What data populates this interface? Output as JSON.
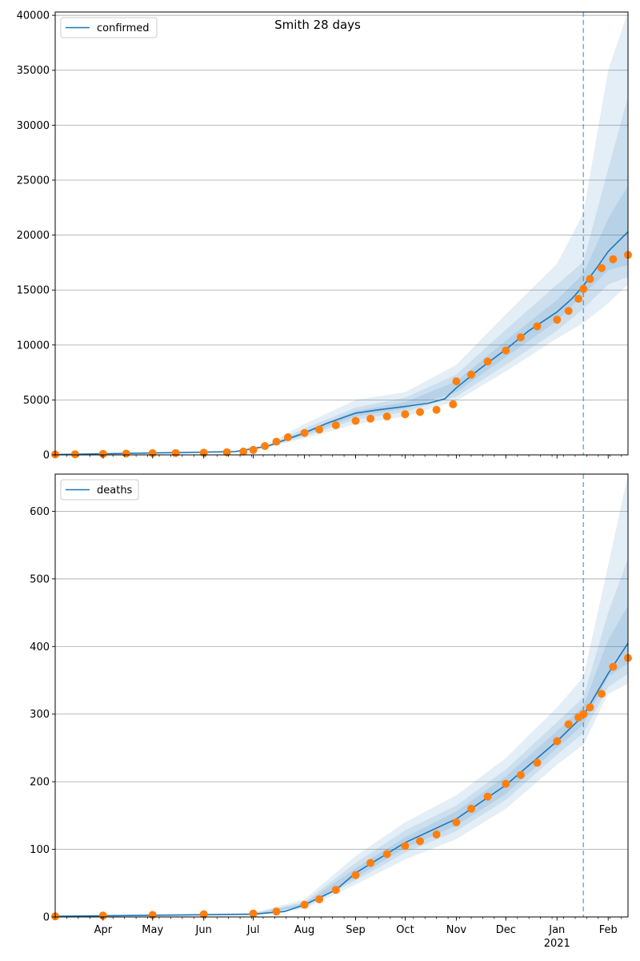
{
  "figure_title": "Smith 28 days",
  "chart_data": [
    {
      "type": "line",
      "name": "confirmed-panel",
      "legend": [
        "confirmed"
      ],
      "legend_position": "top-left",
      "grid": "horizontal",
      "x_range": [
        "2020-03-03",
        "2021-02-13"
      ],
      "ylim": [
        0,
        40300
      ],
      "yticks": [
        0,
        5000,
        10000,
        15000,
        20000,
        25000,
        30000,
        35000,
        40000
      ],
      "forecast_start": "2021-01-17",
      "model_line": {
        "name": "confirmed",
        "x": [
          "2020-03-03",
          "2020-06-20",
          "2020-07-10",
          "2020-08-01",
          "2020-08-15",
          "2020-09-01",
          "2020-09-15",
          "2020-10-01",
          "2020-10-15",
          "2020-10-25",
          "2020-11-01",
          "2020-11-15",
          "2020-12-01",
          "2020-12-15",
          "2021-01-01",
          "2021-01-10",
          "2021-01-17",
          "2021-01-25",
          "2021-02-01",
          "2021-02-13"
        ],
        "y": [
          30,
          300,
          800,
          2000,
          2900,
          3800,
          4100,
          4400,
          4700,
          5100,
          6100,
          7800,
          9600,
          11300,
          13000,
          14200,
          15400,
          17000,
          18500,
          20300
        ]
      },
      "bands": [
        {
          "x": [
            "2020-03-03",
            "2020-06-20",
            "2020-07-10",
            "2020-08-01",
            "2020-09-01",
            "2020-10-01",
            "2020-11-01",
            "2020-12-01",
            "2021-01-01",
            "2021-01-17",
            "2021-02-01",
            "2021-02-13"
          ],
          "low": [
            20,
            280,
            700,
            1500,
            2800,
            3500,
            4900,
            7600,
            10600,
            12000,
            13800,
            15500
          ],
          "high": [
            40,
            330,
            1000,
            2800,
            5000,
            5700,
            8200,
            12800,
            17400,
            22000,
            35000,
            40300
          ]
        },
        {
          "x": [
            "2020-03-03",
            "2020-06-20",
            "2020-07-10",
            "2020-08-01",
            "2020-09-01",
            "2020-10-01",
            "2020-11-01",
            "2020-12-01",
            "2021-01-01",
            "2021-01-17",
            "2021-02-01",
            "2021-02-13"
          ],
          "low": [
            25,
            290,
            750,
            1700,
            3200,
            3900,
            5300,
            8200,
            11300,
            13300,
            15500,
            16200
          ],
          "high": [
            35,
            320,
            900,
            2400,
            4300,
            5200,
            7300,
            11400,
            15500,
            17600,
            26000,
            32600
          ]
        },
        {
          "x": [
            "2020-03-03",
            "2020-06-20",
            "2020-07-10",
            "2020-08-01",
            "2020-09-01",
            "2020-10-01",
            "2020-11-01",
            "2020-12-01",
            "2021-01-01",
            "2021-01-17",
            "2021-02-01",
            "2021-02-13"
          ],
          "low": [
            27,
            295,
            780,
            1850,
            3500,
            4200,
            5700,
            8900,
            12200,
            14600,
            16800,
            17300
          ],
          "high": [
            33,
            310,
            850,
            2150,
            4000,
            4800,
            6700,
            10400,
            14100,
            16500,
            21500,
            24500
          ]
        }
      ],
      "observed": {
        "x": [
          "2020-03-03",
          "2020-03-15",
          "2020-04-01",
          "2020-04-15",
          "2020-05-01",
          "2020-05-15",
          "2020-06-01",
          "2020-06-15",
          "2020-06-25",
          "2020-07-01",
          "2020-07-08",
          "2020-07-15",
          "2020-07-22",
          "2020-08-01",
          "2020-08-10",
          "2020-08-20",
          "2020-09-01",
          "2020-09-10",
          "2020-09-20",
          "2020-10-01",
          "2020-10-10",
          "2020-10-20",
          "2020-10-30",
          "2020-11-01",
          "2020-11-10",
          "2020-11-20",
          "2020-12-01",
          "2020-12-10",
          "2020-12-20",
          "2021-01-01",
          "2021-01-08",
          "2021-01-14",
          "2021-01-17",
          "2021-01-21",
          "2021-01-28",
          "2021-02-04",
          "2021-02-13"
        ],
        "y": [
          40,
          60,
          90,
          120,
          150,
          170,
          200,
          240,
          300,
          450,
          800,
          1200,
          1600,
          2000,
          2300,
          2700,
          3100,
          3300,
          3500,
          3700,
          3900,
          4100,
          4600,
          6700,
          7300,
          8500,
          9500,
          10700,
          11700,
          12300,
          13100,
          14200,
          15100,
          16000,
          17000,
          17800,
          18200
        ]
      }
    },
    {
      "type": "line",
      "name": "deaths-panel",
      "legend": [
        "deaths"
      ],
      "legend_position": "top-left",
      "grid": "horizontal",
      "x_range": [
        "2020-03-03",
        "2021-02-13"
      ],
      "ylim": [
        0,
        655
      ],
      "yticks": [
        0,
        100,
        200,
        300,
        400,
        500,
        600
      ],
      "xticks": [
        "Apr",
        "May",
        "Jun",
        "Jul",
        "Aug",
        "Sep",
        "Oct",
        "Nov",
        "Dec",
        "Jan",
        "Feb"
      ],
      "xtick_dates": [
        "2020-04-01",
        "2020-05-01",
        "2020-06-01",
        "2020-07-01",
        "2020-08-01",
        "2020-09-01",
        "2020-10-01",
        "2020-11-01",
        "2020-12-01",
        "2021-01-01",
        "2021-02-01"
      ],
      "year_label": "2021",
      "forecast_start": "2021-01-17",
      "model_line": {
        "name": "deaths",
        "x": [
          "2020-03-03",
          "2020-07-01",
          "2020-07-20",
          "2020-08-01",
          "2020-08-20",
          "2020-09-01",
          "2020-10-01",
          "2020-11-01",
          "2020-12-01",
          "2021-01-01",
          "2021-01-17",
          "2021-02-01",
          "2021-02-13"
        ],
        "y": [
          1,
          4,
          8,
          18,
          40,
          65,
          110,
          145,
          195,
          260,
          298,
          360,
          405
        ]
      },
      "bands": [
        {
          "x": [
            "2020-03-03",
            "2020-07-01",
            "2020-08-01",
            "2020-09-01",
            "2020-10-01",
            "2020-11-01",
            "2020-12-01",
            "2021-01-01",
            "2021-01-17",
            "2021-02-01",
            "2021-02-13"
          ],
          "low": [
            0,
            3,
            12,
            48,
            85,
            115,
            160,
            225,
            255,
            330,
            345
          ],
          "high": [
            2,
            6,
            26,
            90,
            140,
            180,
            235,
            310,
            355,
            520,
            655
          ]
        },
        {
          "x": [
            "2020-03-03",
            "2020-07-01",
            "2020-08-01",
            "2020-09-01",
            "2020-10-01",
            "2020-11-01",
            "2020-12-01",
            "2021-01-01",
            "2021-01-17",
            "2021-02-01",
            "2021-02-13"
          ],
          "low": [
            0,
            3,
            14,
            54,
            95,
            127,
            173,
            240,
            272,
            340,
            360
          ],
          "high": [
            2,
            5,
            22,
            80,
            128,
            165,
            218,
            288,
            325,
            450,
            530
          ]
        },
        {
          "x": [
            "2020-03-03",
            "2020-07-01",
            "2020-08-01",
            "2020-09-01",
            "2020-10-01",
            "2020-11-01",
            "2020-12-01",
            "2021-01-01",
            "2021-01-17",
            "2021-02-01",
            "2021-02-13"
          ],
          "low": [
            1,
            4,
            16,
            58,
            102,
            135,
            182,
            250,
            285,
            355,
            375
          ],
          "high": [
            1,
            5,
            20,
            72,
            118,
            156,
            208,
            275,
            312,
            410,
            460
          ]
        }
      ],
      "observed": {
        "x": [
          "2020-03-03",
          "2020-04-01",
          "2020-05-01",
          "2020-06-01",
          "2020-07-01",
          "2020-07-15",
          "2020-08-01",
          "2020-08-10",
          "2020-08-20",
          "2020-09-01",
          "2020-09-10",
          "2020-09-20",
          "2020-10-01",
          "2020-10-10",
          "2020-10-20",
          "2020-11-01",
          "2020-11-10",
          "2020-11-20",
          "2020-12-01",
          "2020-12-10",
          "2020-12-20",
          "2021-01-01",
          "2021-01-08",
          "2021-01-14",
          "2021-01-17",
          "2021-01-21",
          "2021-01-28",
          "2021-02-04",
          "2021-02-13"
        ],
        "y": [
          1,
          2,
          3,
          4,
          5,
          8,
          18,
          26,
          40,
          62,
          80,
          93,
          105,
          112,
          122,
          140,
          160,
          178,
          197,
          210,
          228,
          260,
          285,
          295,
          300,
          310,
          330,
          370,
          383
        ]
      }
    }
  ]
}
